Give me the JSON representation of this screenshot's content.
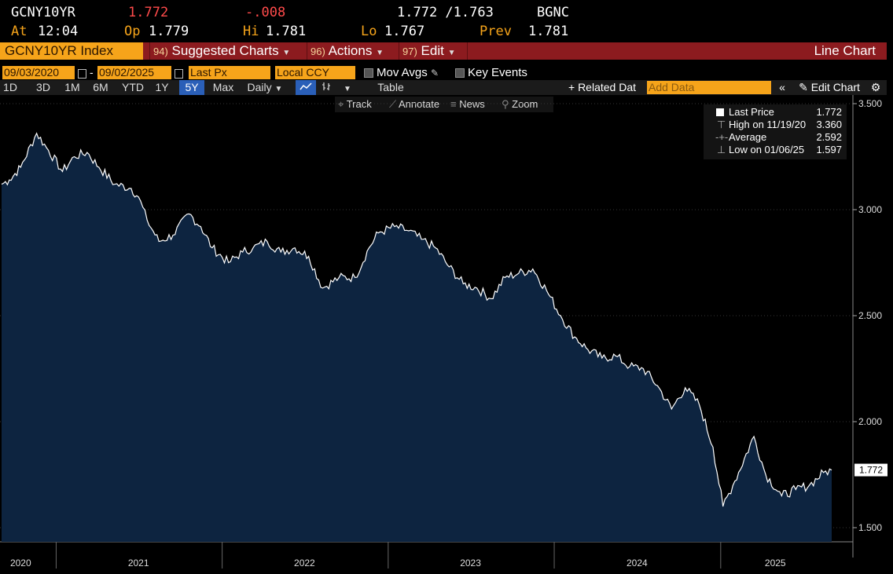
{
  "header": {
    "ticker": "GCNY10YR",
    "last": "1.772",
    "change": "-.008",
    "bid_ask": "1.772 /1.763",
    "source": "BGNC",
    "at_label": "At",
    "time": "12:04",
    "open_label": "Op",
    "open": "1.779",
    "high_label": "Hi",
    "high": "1.781",
    "low_label": "Lo",
    "low": "1.767",
    "prev_label": "Prev",
    "prev": "1.781"
  },
  "menubar": {
    "security": "GCNY10YR Index",
    "suggested_num": "94)",
    "suggested": "Suggested Charts",
    "actions_num": "96)",
    "actions": "Actions",
    "edit_num": "97)",
    "edit": "Edit",
    "chart_type": "Line Chart"
  },
  "options": {
    "start_date": "09/03/2020",
    "end_date": "09/02/2025",
    "dash": "-",
    "field": "Last Px",
    "currency": "Local CCY",
    "mov_avgs": "Mov Avgs",
    "key_events": "Key Events"
  },
  "periods": [
    "1D",
    "3D",
    "1M",
    "6M",
    "YTD",
    "1Y",
    "5Y",
    "Max"
  ],
  "selected_period": "5Y",
  "frequency": "Daily",
  "table_label": "Table",
  "related_data": "+ Related Dat",
  "add_data_placeholder": "Add Data",
  "edit_chart": "Edit Chart",
  "tools": [
    "Track",
    "Annotate",
    "News",
    "Zoom"
  ],
  "legend": [
    {
      "label": "Last Price",
      "value": "1.772"
    },
    {
      "label": "High on 11/19/20",
      "value": "3.360"
    },
    {
      "label": "Average",
      "value": "2.592"
    },
    {
      "label": "Low on 01/06/25",
      "value": "1.597"
    }
  ],
  "colors": {
    "accent": "#f6a41a",
    "menubar": "#8c1b1f",
    "area": "#0d2440",
    "line": "#ffffff",
    "negative": "#ff4b4b"
  },
  "chart_data": {
    "type": "area",
    "title": "",
    "xlabel": "",
    "ylabel": "",
    "ylim": [
      1.45,
      3.53
    ],
    "y_ticks": [
      "3.500",
      "3.000",
      "2.500",
      "2.000",
      "1.500"
    ],
    "x_ticks": [
      "2020",
      "2021",
      "2022",
      "2023",
      "2024",
      "2025"
    ],
    "last_label": "1.772",
    "x": [
      "2020-09-03",
      "2020-09-20",
      "2020-10-15",
      "2020-11-19",
      "2020-12-15",
      "2021-01-15",
      "2021-02-10",
      "2021-03-10",
      "2021-04-05",
      "2021-05-10",
      "2021-06-15",
      "2021-07-01",
      "2021-07-20",
      "2021-08-15",
      "2021-09-15",
      "2021-10-20",
      "2021-11-15",
      "2021-12-10",
      "2022-01-15",
      "2022-02-15",
      "2022-03-10",
      "2022-04-10",
      "2022-05-10",
      "2022-06-10",
      "2022-07-10",
      "2022-08-10",
      "2022-09-15",
      "2022-10-20",
      "2022-11-20",
      "2022-12-10",
      "2023-01-15",
      "2023-02-15",
      "2023-03-15",
      "2023-04-15",
      "2023-05-15",
      "2023-06-15",
      "2023-07-15",
      "2023-08-15",
      "2023-09-15",
      "2023-10-15",
      "2023-11-15",
      "2023-12-15",
      "2024-01-15",
      "2024-02-15",
      "2024-03-15",
      "2024-04-15",
      "2024-05-15",
      "2024-06-15",
      "2024-07-15",
      "2024-08-15",
      "2024-09-15",
      "2024-10-15",
      "2024-11-15",
      "2024-12-15",
      "2025-01-06",
      "2025-02-01",
      "2025-03-15",
      "2025-04-10",
      "2025-05-15",
      "2025-06-15",
      "2025-07-15",
      "2025-08-15",
      "2025-09-02"
    ],
    "series": [
      {
        "values": [
          3.12,
          3.14,
          3.2,
          3.36,
          3.28,
          3.18,
          3.25,
          3.27,
          3.2,
          3.12,
          3.1,
          3.06,
          2.95,
          2.85,
          2.88,
          2.98,
          2.92,
          2.82,
          2.75,
          2.8,
          2.82,
          2.85,
          2.8,
          2.82,
          2.78,
          2.63,
          2.68,
          2.68,
          2.82,
          2.89,
          2.92,
          2.9,
          2.86,
          2.82,
          2.73,
          2.65,
          2.63,
          2.58,
          2.68,
          2.7,
          2.72,
          2.62,
          2.5,
          2.4,
          2.34,
          2.3,
          2.31,
          2.26,
          2.25,
          2.17,
          2.06,
          2.16,
          2.08,
          1.88,
          1.6,
          1.72,
          1.93,
          1.75,
          1.65,
          1.68,
          1.7,
          1.76,
          1.772
        ]
      }
    ]
  }
}
